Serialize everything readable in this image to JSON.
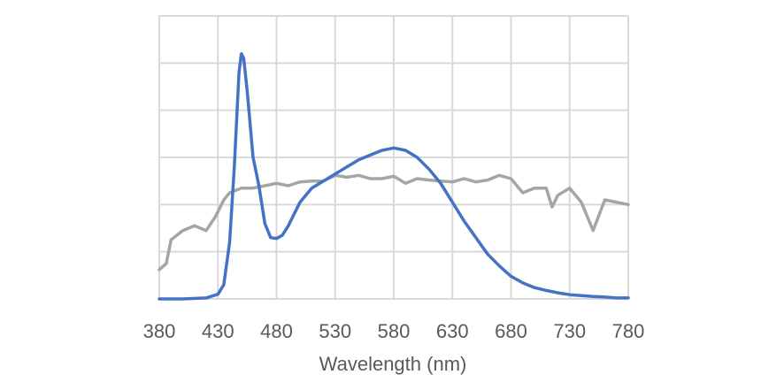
{
  "chart_data": {
    "type": "line",
    "xlabel": "Wavelength (nm)",
    "ylabel": "",
    "xlim": [
      380,
      780
    ],
    "ylim": [
      0,
      6
    ],
    "x_ticks": [
      "380",
      "430",
      "480",
      "530",
      "580",
      "630",
      "680",
      "730",
      "780"
    ],
    "grid": true,
    "legend": "none",
    "series": [
      {
        "color": "#4472C4",
        "points": [
          [
            380,
            0.0
          ],
          [
            400,
            0.0
          ],
          [
            420,
            0.02
          ],
          [
            430,
            0.1
          ],
          [
            435,
            0.3
          ],
          [
            440,
            1.2
          ],
          [
            444,
            2.8
          ],
          [
            448,
            4.8
          ],
          [
            450,
            5.2
          ],
          [
            452,
            5.1
          ],
          [
            455,
            4.4
          ],
          [
            460,
            3.0
          ],
          [
            465,
            2.4
          ],
          [
            470,
            1.6
          ],
          [
            475,
            1.3
          ],
          [
            480,
            1.28
          ],
          [
            485,
            1.35
          ],
          [
            490,
            1.55
          ],
          [
            500,
            2.05
          ],
          [
            510,
            2.35
          ],
          [
            520,
            2.5
          ],
          [
            530,
            2.65
          ],
          [
            540,
            2.8
          ],
          [
            550,
            2.95
          ],
          [
            560,
            3.05
          ],
          [
            570,
            3.15
          ],
          [
            580,
            3.2
          ],
          [
            590,
            3.15
          ],
          [
            600,
            3.0
          ],
          [
            610,
            2.75
          ],
          [
            620,
            2.45
          ],
          [
            630,
            2.05
          ],
          [
            640,
            1.65
          ],
          [
            650,
            1.3
          ],
          [
            660,
            0.95
          ],
          [
            670,
            0.7
          ],
          [
            680,
            0.48
          ],
          [
            690,
            0.34
          ],
          [
            700,
            0.24
          ],
          [
            710,
            0.18
          ],
          [
            720,
            0.13
          ],
          [
            730,
            0.09
          ],
          [
            740,
            0.07
          ],
          [
            750,
            0.05
          ],
          [
            760,
            0.04
          ],
          [
            770,
            0.02
          ],
          [
            780,
            0.02
          ]
        ]
      },
      {
        "color": "#A5A5A5",
        "points": [
          [
            380,
            0.62
          ],
          [
            386,
            0.75
          ],
          [
            390,
            1.25
          ],
          [
            400,
            1.45
          ],
          [
            410,
            1.55
          ],
          [
            415,
            1.5
          ],
          [
            420,
            1.45
          ],
          [
            428,
            1.75
          ],
          [
            435,
            2.1
          ],
          [
            440,
            2.25
          ],
          [
            450,
            2.35
          ],
          [
            460,
            2.35
          ],
          [
            470,
            2.4
          ],
          [
            480,
            2.45
          ],
          [
            490,
            2.4
          ],
          [
            500,
            2.48
          ],
          [
            510,
            2.5
          ],
          [
            520,
            2.5
          ],
          [
            530,
            2.62
          ],
          [
            540,
            2.58
          ],
          [
            550,
            2.62
          ],
          [
            560,
            2.55
          ],
          [
            570,
            2.55
          ],
          [
            580,
            2.6
          ],
          [
            590,
            2.45
          ],
          [
            600,
            2.55
          ],
          [
            610,
            2.52
          ],
          [
            620,
            2.5
          ],
          [
            630,
            2.48
          ],
          [
            640,
            2.55
          ],
          [
            650,
            2.48
          ],
          [
            660,
            2.52
          ],
          [
            670,
            2.62
          ],
          [
            680,
            2.55
          ],
          [
            690,
            2.25
          ],
          [
            700,
            2.35
          ],
          [
            710,
            2.35
          ],
          [
            715,
            1.95
          ],
          [
            720,
            2.2
          ],
          [
            730,
            2.35
          ],
          [
            740,
            2.05
          ],
          [
            750,
            1.45
          ],
          [
            760,
            2.1
          ],
          [
            770,
            2.05
          ],
          [
            780,
            2.0
          ]
        ]
      }
    ]
  }
}
